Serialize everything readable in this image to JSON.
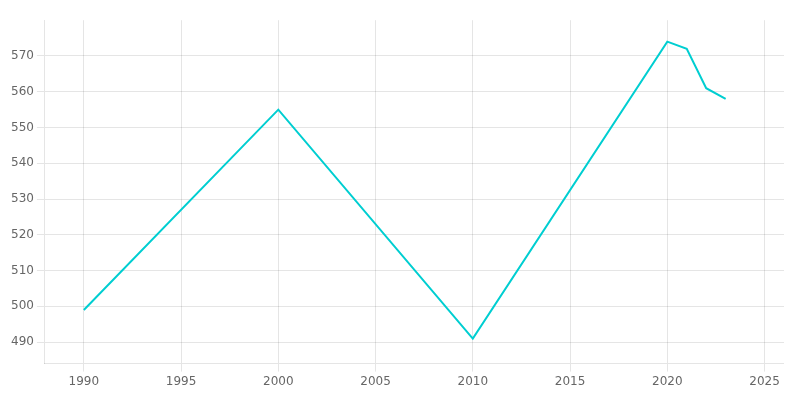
{
  "chart_data": {
    "type": "line",
    "x": [
      1990,
      2000,
      2010,
      2020,
      2021,
      2022,
      2023
    ],
    "values": [
      499,
      555,
      491,
      574,
      572,
      561,
      558
    ],
    "color": "#00CED1",
    "xlim": [
      1988,
      2026
    ],
    "ylim": [
      484,
      580
    ],
    "xticks": [
      1990,
      1995,
      2000,
      2005,
      2010,
      2015,
      2020,
      2025
    ],
    "yticks": [
      490,
      500,
      510,
      520,
      530,
      540,
      550,
      560,
      570
    ],
    "grid": true
  }
}
